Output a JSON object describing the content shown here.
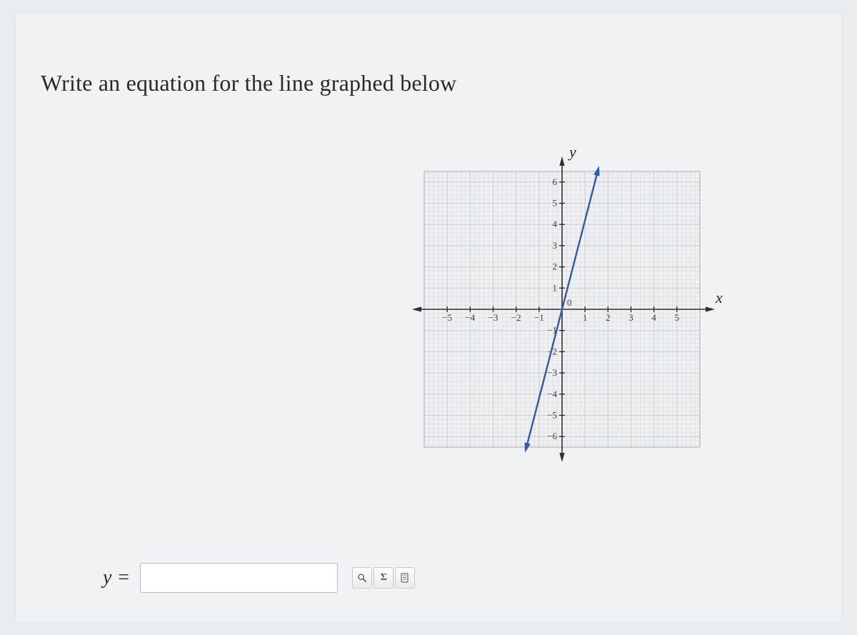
{
  "prompt_text": "Write an equation for the line graphed below",
  "answer": {
    "prefix": "y =",
    "value": "",
    "placeholder": ""
  },
  "toolbar": {
    "preview_title": "Preview",
    "sigma_title": "Math symbols",
    "help_title": "Help"
  },
  "graph": {
    "type": "line",
    "x_axis_label": "x",
    "y_axis_label": "y",
    "xlim": [
      -6,
      6
    ],
    "ylim": [
      -6.5,
      6.5
    ],
    "xticks": [
      -5,
      -4,
      -3,
      -2,
      -1,
      1,
      2,
      3,
      4,
      5
    ],
    "yticks": [
      -6,
      -5,
      -4,
      -3,
      -2,
      -1,
      1,
      2,
      3,
      4,
      5,
      6
    ],
    "origin_label": "0",
    "minor_grid_step": 0.2,
    "major_grid_step": 1,
    "minor_grid_color": "#d8dbdf",
    "major_grid_color": "#c9ccd1",
    "border_color": "#b3b7bc",
    "axis_color": "#2f2f2f",
    "tick_font_size": 13,
    "tick_color": "#3b3b3b",
    "background_color": "#eef0f2",
    "line": {
      "color": "#2e5aa8",
      "width": 2.4,
      "p1": {
        "x": -1.55,
        "y": -6.5
      },
      "p2": {
        "x": 1.55,
        "y": 6.5
      },
      "arrows": true
    }
  }
}
